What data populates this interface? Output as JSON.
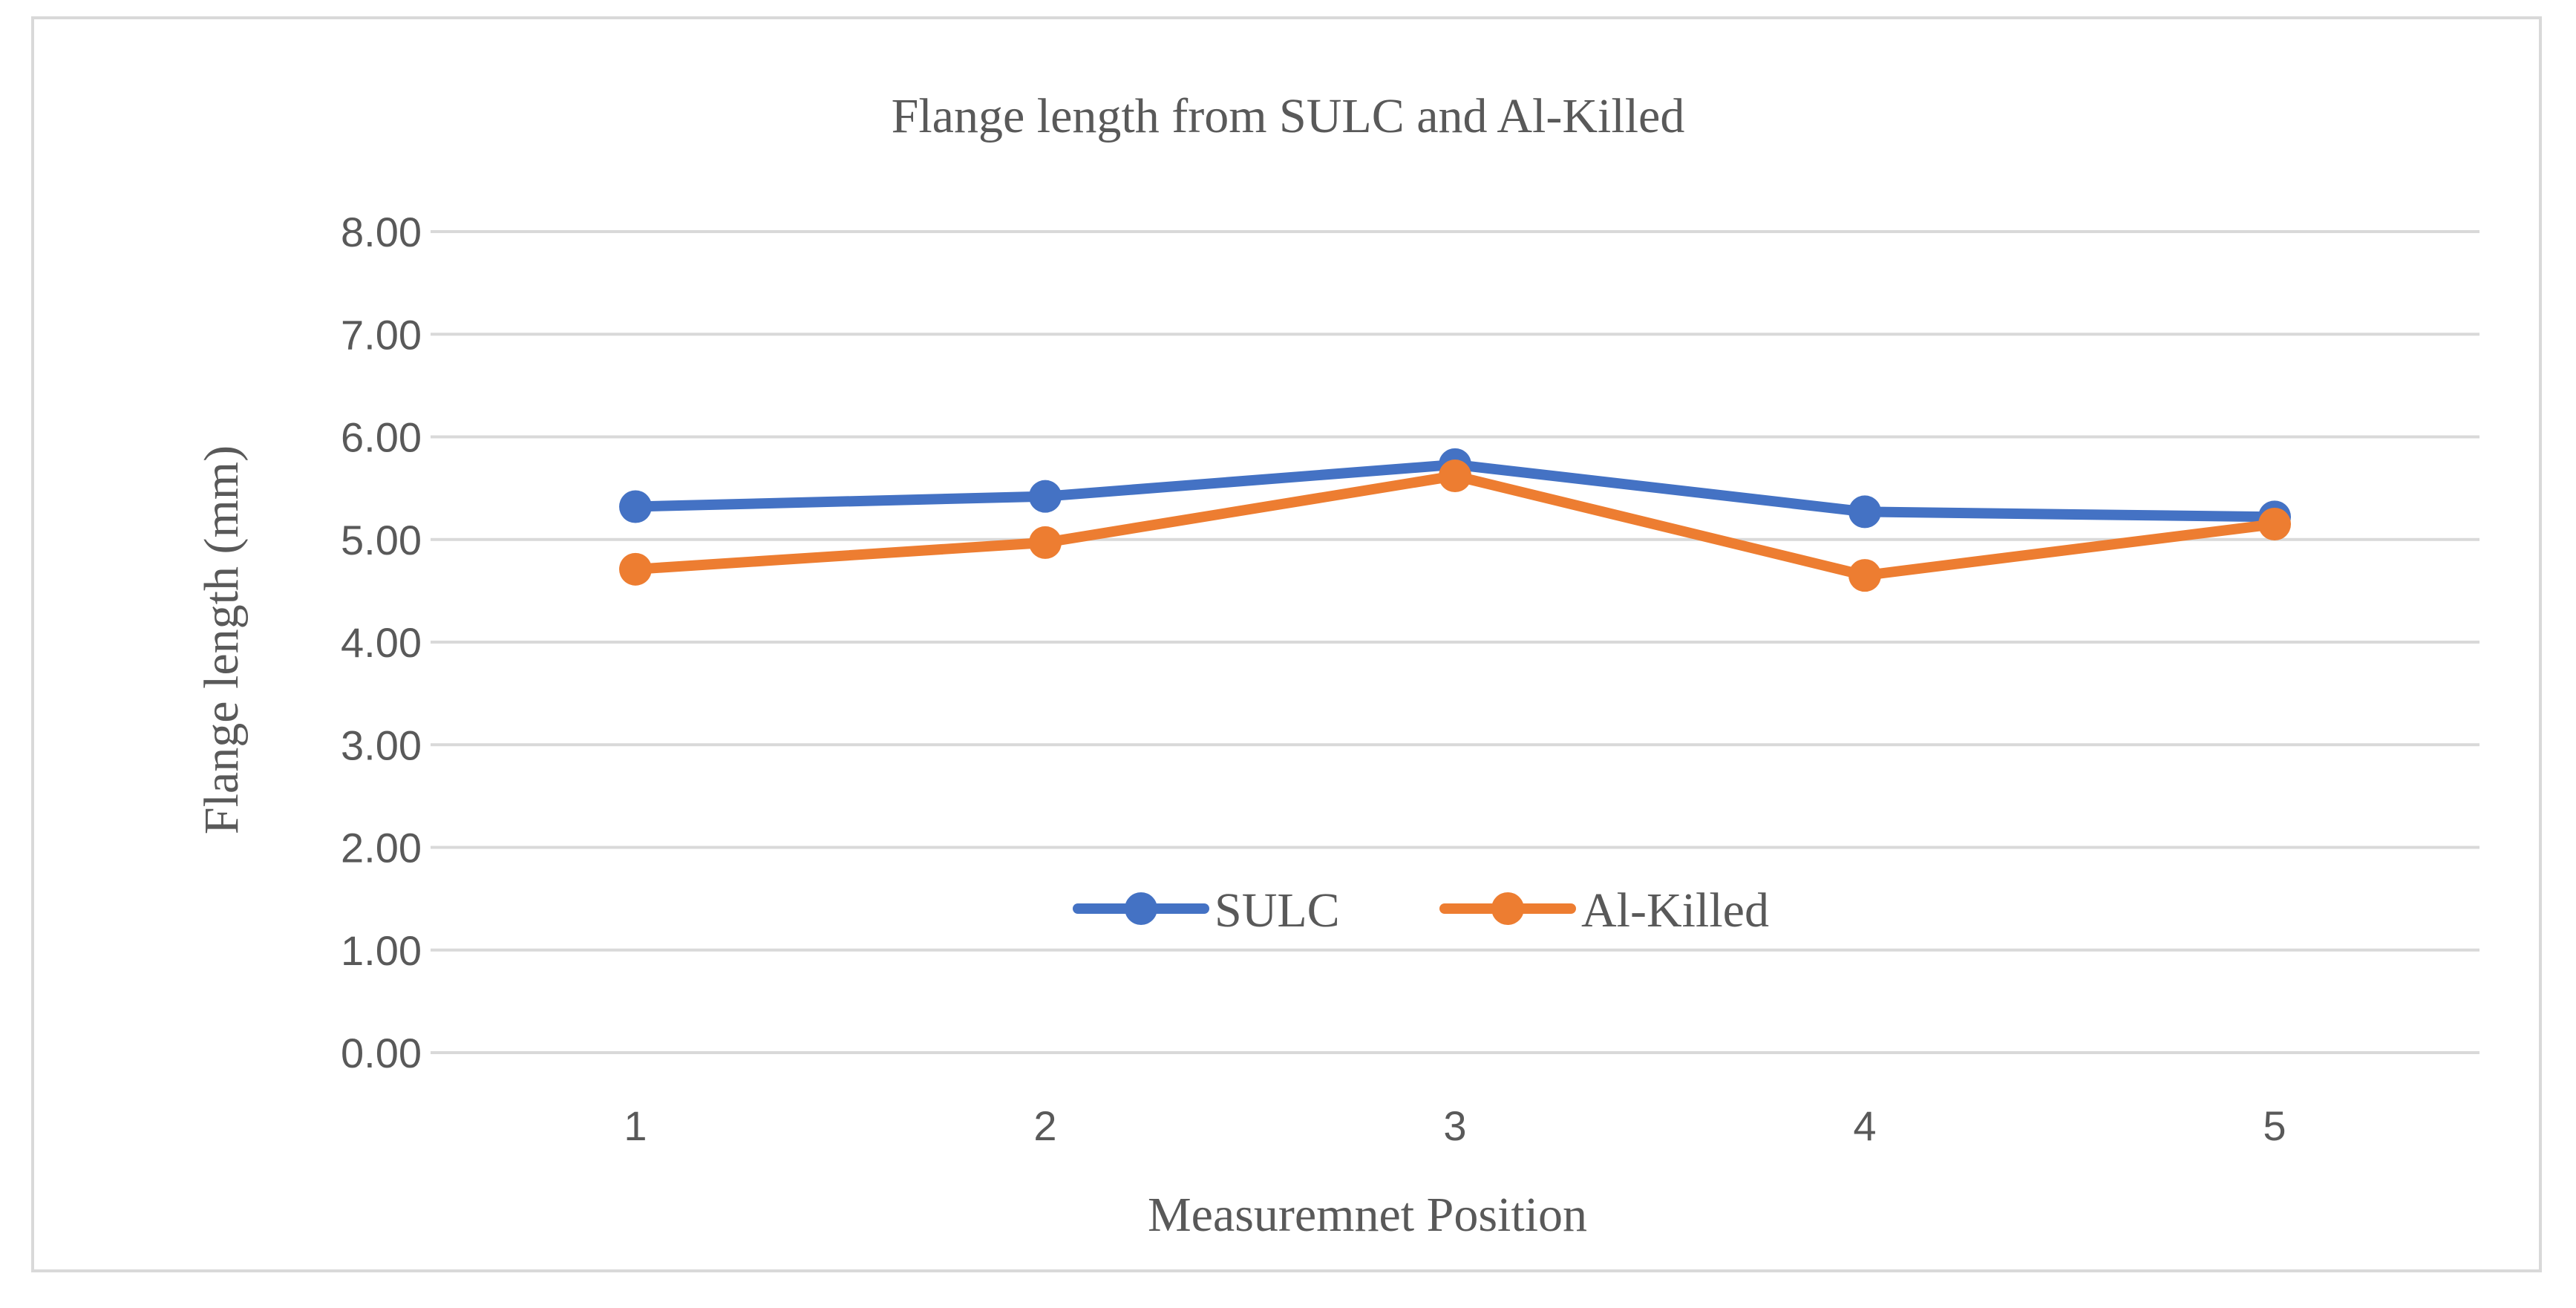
{
  "chart_data": {
    "type": "line",
    "title": "Flange length from SULC and Al-Killed",
    "xlabel": "Measuremnet Position",
    "ylabel": "Flange length (mm)",
    "categories": [
      "1",
      "2",
      "3",
      "4",
      "5"
    ],
    "ylim": [
      0,
      8
    ],
    "yticks": [
      "0.00",
      "1.00",
      "2.00",
      "3.00",
      "4.00",
      "5.00",
      "6.00",
      "7.00",
      "8.00"
    ],
    "grid": true,
    "legend_position": "center",
    "series": [
      {
        "name": "SULC",
        "color": "#4472c4",
        "values": [
          5.32,
          5.42,
          5.73,
          5.27,
          5.22
        ]
      },
      {
        "name": "Al-Killed",
        "color": "#ed7d31",
        "values": [
          4.71,
          4.97,
          5.62,
          4.65,
          5.15
        ]
      }
    ]
  }
}
